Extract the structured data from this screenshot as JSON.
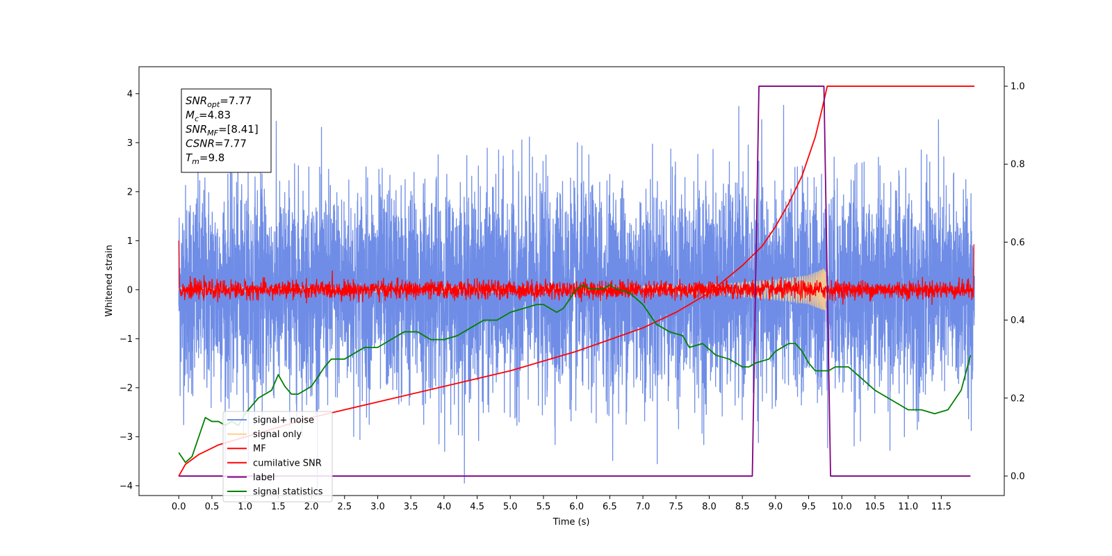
{
  "chart_data": {
    "type": "line",
    "xlabel": "Time (s)",
    "ylabel": "Whitened strain",
    "xlim": [
      -0.6,
      12.45
    ],
    "ylim": [
      -4.2,
      4.55
    ],
    "y2lim": [
      -0.05,
      1.05
    ],
    "x_ticks": [
      0.0,
      0.5,
      1.0,
      1.5,
      2.0,
      2.5,
      3.0,
      3.5,
      4.0,
      4.5,
      5.0,
      5.5,
      6.0,
      6.5,
      7.0,
      7.5,
      8.0,
      8.5,
      9.0,
      9.5,
      10.0,
      10.5,
      11.0,
      11.5
    ],
    "x_tick_labels": [
      "0.0",
      "0.5",
      "1.0",
      "1.5",
      "2.0",
      "2.5",
      "3.0",
      "3.5",
      "4.0",
      "4.5",
      "5.0",
      "5.5",
      "6.0",
      "6.5",
      "7.0",
      "7.5",
      "8.0",
      "8.5",
      "9.0",
      "9.5",
      "10.0",
      "10.5",
      "11.0",
      "11.5"
    ],
    "y_ticks": [
      -4,
      -3,
      -2,
      -1,
      0,
      1,
      2,
      3,
      4
    ],
    "y_tick_labels": [
      "−4",
      "−3",
      "−2",
      "−1",
      "0",
      "1",
      "2",
      "3",
      "4"
    ],
    "y2_ticks": [
      0.0,
      0.2,
      0.4,
      0.6,
      0.8,
      1.0
    ],
    "y2_tick_labels": [
      "0.0",
      "0.2",
      "0.4",
      "0.6",
      "0.8",
      "1.0"
    ],
    "legend_position": "lower-left",
    "series": [
      {
        "name": "signal+ noise",
        "axis": "left",
        "color": "#6f8de6",
        "kind": "noise",
        "x_range": [
          0.0,
          12.0
        ],
        "std": 1.05
      },
      {
        "name": "signal only",
        "axis": "left",
        "color": "#ffcf8a",
        "kind": "chirp",
        "x_range": [
          0.0,
          9.78
        ],
        "envelope": [
          [
            0.0,
            0.04
          ],
          [
            6.0,
            0.06
          ],
          [
            8.0,
            0.1
          ],
          [
            9.0,
            0.2
          ],
          [
            9.5,
            0.3
          ],
          [
            9.75,
            0.45
          ],
          [
            9.78,
            0.0
          ]
        ]
      },
      {
        "name": "MF",
        "axis": "left",
        "color": "#ff0000",
        "kind": "noise",
        "x_range": [
          0.0,
          12.0
        ],
        "std": 0.09,
        "edge_values": [
          1.0,
          0.92
        ]
      },
      {
        "name": "cumilative SNR",
        "axis": "right",
        "color": "#ff0000",
        "kind": "line",
        "x": [
          0.0,
          0.1,
          0.3,
          0.6,
          1.0,
          1.5,
          2.0,
          3.0,
          4.0,
          5.0,
          6.0,
          7.0,
          7.5,
          8.0,
          8.5,
          8.8,
          9.0,
          9.2,
          9.4,
          9.6,
          9.7,
          9.78,
          12.0
        ],
        "y": [
          0.0,
          0.03,
          0.055,
          0.08,
          0.1,
          0.125,
          0.15,
          0.19,
          0.23,
          0.27,
          0.32,
          0.38,
          0.42,
          0.47,
          0.54,
          0.59,
          0.64,
          0.7,
          0.77,
          0.87,
          0.94,
          1.0,
          1.0
        ]
      },
      {
        "name": "label",
        "axis": "right",
        "color": "#800080",
        "kind": "line",
        "x": [
          0.0,
          8.65,
          8.75,
          9.73,
          9.83,
          11.94
        ],
        "y": [
          0.0,
          0.0,
          1.0,
          1.0,
          0.0,
          0.0
        ]
      },
      {
        "name": "signal statistics",
        "axis": "right",
        "color": "#008000",
        "kind": "line",
        "x": [
          0.0,
          0.1,
          0.2,
          0.3,
          0.4,
          0.5,
          0.6,
          0.7,
          0.8,
          0.9,
          1.0,
          1.2,
          1.4,
          1.5,
          1.6,
          1.7,
          1.8,
          2.0,
          2.2,
          2.3,
          2.5,
          2.7,
          2.8,
          3.0,
          3.2,
          3.4,
          3.6,
          3.8,
          4.0,
          4.2,
          4.4,
          4.5,
          4.6,
          4.8,
          5.0,
          5.2,
          5.4,
          5.5,
          5.7,
          5.8,
          6.0,
          6.1,
          6.2,
          6.4,
          6.5,
          6.6,
          6.8,
          7.0,
          7.2,
          7.4,
          7.6,
          7.7,
          7.9,
          8.1,
          8.3,
          8.5,
          8.6,
          8.7,
          8.9,
          9.0,
          9.1,
          9.2,
          9.3,
          9.4,
          9.5,
          9.6,
          9.7,
          9.8,
          9.9,
          10.0,
          10.1,
          10.3,
          10.5,
          10.7,
          10.8,
          11.0,
          11.2,
          11.4,
          11.6,
          11.8,
          11.94
        ],
        "y": [
          0.06,
          0.035,
          0.05,
          0.1,
          0.15,
          0.14,
          0.14,
          0.13,
          0.14,
          0.13,
          0.16,
          0.2,
          0.22,
          0.26,
          0.23,
          0.21,
          0.21,
          0.23,
          0.28,
          0.3,
          0.3,
          0.32,
          0.33,
          0.33,
          0.35,
          0.37,
          0.37,
          0.35,
          0.35,
          0.36,
          0.38,
          0.39,
          0.4,
          0.4,
          0.42,
          0.43,
          0.44,
          0.44,
          0.42,
          0.43,
          0.48,
          0.49,
          0.48,
          0.48,
          0.49,
          0.48,
          0.47,
          0.44,
          0.39,
          0.37,
          0.36,
          0.33,
          0.34,
          0.31,
          0.3,
          0.28,
          0.28,
          0.29,
          0.3,
          0.32,
          0.33,
          0.34,
          0.34,
          0.32,
          0.29,
          0.27,
          0.27,
          0.27,
          0.28,
          0.28,
          0.28,
          0.25,
          0.22,
          0.2,
          0.19,
          0.17,
          0.17,
          0.16,
          0.17,
          0.22,
          0.31
        ]
      }
    ],
    "info_box": [
      {
        "sym": "SNR",
        "sub": "opt",
        "val": "=7.77"
      },
      {
        "sym": "M",
        "sub": "c",
        "val": "=4.83"
      },
      {
        "sym": "SNR",
        "sub": "MF",
        "val": "=[8.41]"
      },
      {
        "sym": "CSNR",
        "sub": "",
        "val": "=7.77"
      },
      {
        "sym": "T",
        "sub": "m",
        "val": "=9.8"
      }
    ]
  }
}
